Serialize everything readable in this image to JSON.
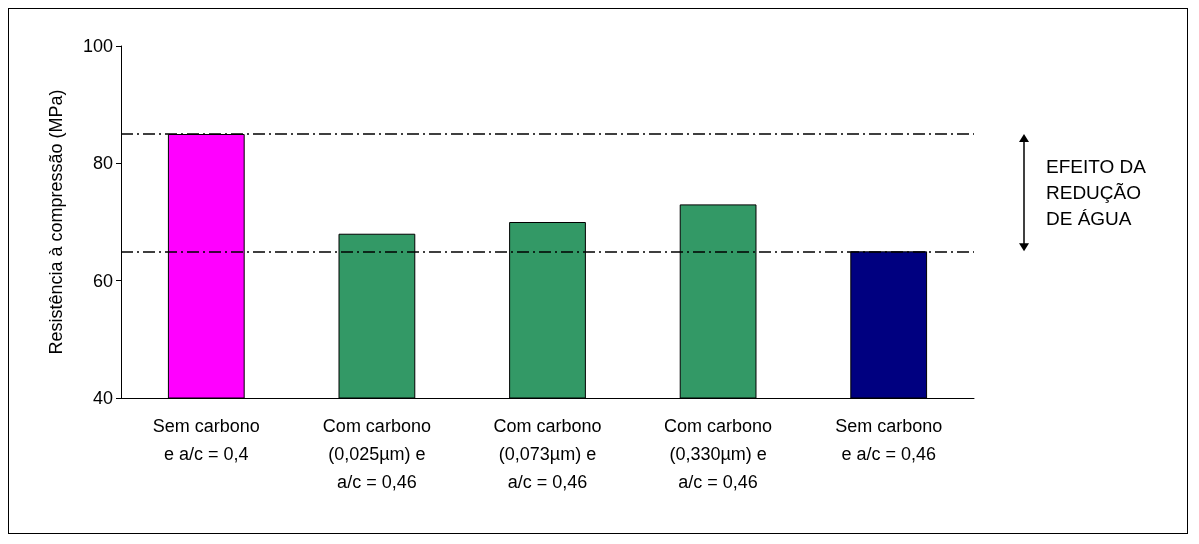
{
  "chart_data": {
    "type": "bar",
    "categories": [
      "Sem carbono\ne a/c = 0,4",
      "Com carbono\n(0,025µm) e\na/c = 0,46",
      "Com carbono\n(0,073µm) e\na/c = 0,46",
      "Com carbono\n(0,330µm) e\na/c = 0,46",
      "Sem carbono\ne a/c = 0,46"
    ],
    "values": [
      85,
      68,
      70,
      73,
      65
    ],
    "colors": [
      "#ff00ff",
      "#339966",
      "#339966",
      "#339966",
      "#000080"
    ],
    "ylabel": "Resistência à compressão (MPa)",
    "ylim": [
      40,
      100
    ],
    "yticks": [
      40,
      60,
      80,
      100
    ],
    "ref_lines": [
      {
        "axis": "y",
        "value": 85,
        "color": "#000000",
        "line_style": "dashed"
      },
      {
        "axis": "y",
        "value": 65,
        "color": "#000000",
        "line_style": "dashed"
      }
    ],
    "annotations": [
      "EFEITO DA\nREDUÇÃO\nDE ÁGUA"
    ]
  }
}
